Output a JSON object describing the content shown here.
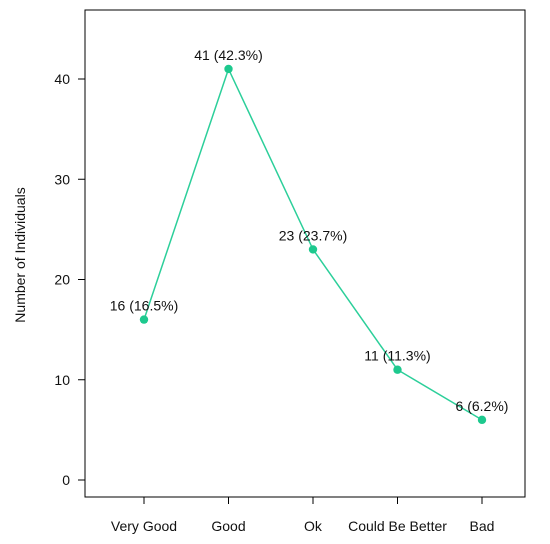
{
  "chart_data": {
    "type": "line",
    "categories": [
      "Very Good",
      "Good",
      "Ok",
      "Could Be Better",
      "Bad"
    ],
    "values": [
      16,
      41,
      23,
      11,
      6
    ],
    "data_labels": [
      "16 (16.5%)",
      "41 (42.3%)",
      "23 (23.7%)",
      "11 (11.3%)",
      "6 (6.2%)"
    ],
    "title": "",
    "xlabel": "",
    "ylabel": "Number of Individuals",
    "ylim": [
      0,
      40
    ],
    "yticks": [
      0,
      10,
      20,
      30,
      40
    ],
    "grid": false,
    "line_color": "#2CCF9A",
    "marker_color": "#1DC98E",
    "axis_color": "#000000"
  }
}
